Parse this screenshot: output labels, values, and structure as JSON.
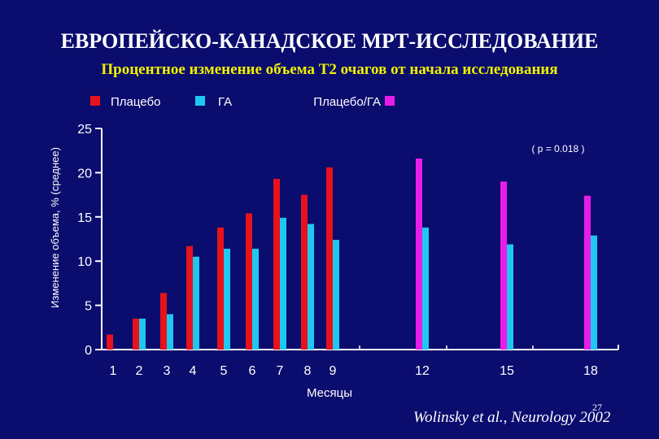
{
  "header": {
    "title": "ЕВРОПЕЙСКО-КАНАДСКОЕ МРТ-ИССЛЕДОВАНИЕ",
    "subtitle": "Процентное изменение объема Т2 очагов от начала исследования"
  },
  "footer": {
    "citation": "Wolinsky et al., Neurology 2002",
    "page_number": "27"
  },
  "chart_data": {
    "type": "bar",
    "title": "",
    "xlabel": "Месяцы",
    "ylabel": "Изменение объема, % (среднее)",
    "ylim": [
      0,
      25
    ],
    "yticks": [
      0,
      5,
      10,
      15,
      20,
      25
    ],
    "categories": [
      "1",
      "2",
      "3",
      "4",
      "5",
      "6",
      "7",
      "8",
      "9",
      "12",
      "15",
      "18"
    ],
    "annotation": "( p = 0.018 )",
    "grid": false,
    "legend_position": "top",
    "series": [
      {
        "name": "Плацебо",
        "color": "#e8121c",
        "values": [
          1.7,
          3.5,
          6.4,
          11.7,
          13.8,
          15.4,
          19.3,
          17.5,
          20.6,
          null,
          null,
          null
        ]
      },
      {
        "name": "ГА",
        "color": "#1ec8f0",
        "values": [
          null,
          3.5,
          4.0,
          10.5,
          11.4,
          11.4,
          14.9,
          14.2,
          12.4,
          13.8,
          11.9,
          12.9
        ]
      },
      {
        "name": "Плацебо/ГА",
        "color": "#e81ee8",
        "values": [
          null,
          null,
          null,
          null,
          null,
          null,
          null,
          null,
          null,
          21.6,
          19.0,
          17.4
        ]
      }
    ]
  }
}
